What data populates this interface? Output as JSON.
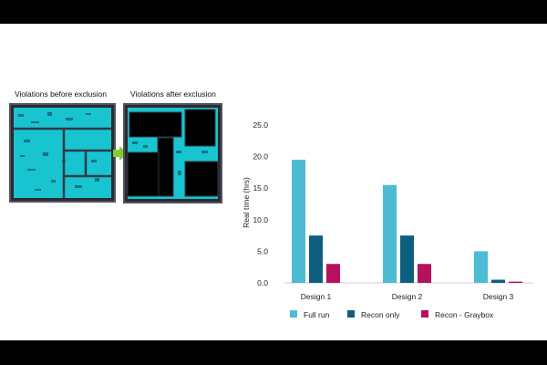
{
  "figure": {
    "caption_before": "Violations before exclusion",
    "caption_after": "Violations after exclusion"
  },
  "chart_data": {
    "type": "bar",
    "categories": [
      "Design 1",
      "Design 2",
      "Design 3"
    ],
    "series": [
      {
        "name": "Full run",
        "values": [
          19.5,
          15.5,
          5.0
        ],
        "color": "#4bbcd4"
      },
      {
        "name": "Recon only",
        "values": [
          7.5,
          7.5,
          0.5
        ],
        "color": "#0e5f7f"
      },
      {
        "name": "Recon - Graybox",
        "values": [
          3.0,
          3.0,
          0.2
        ],
        "color": "#b5115d"
      }
    ],
    "ylabel": "Real time (hrs)",
    "xlabel": "",
    "ylim": [
      0,
      25
    ],
    "yticks": [
      "0.0",
      "5.0",
      "10.0",
      "15.0",
      "20.0",
      "25.0"
    ],
    "grid": false,
    "legend": "bottom"
  }
}
